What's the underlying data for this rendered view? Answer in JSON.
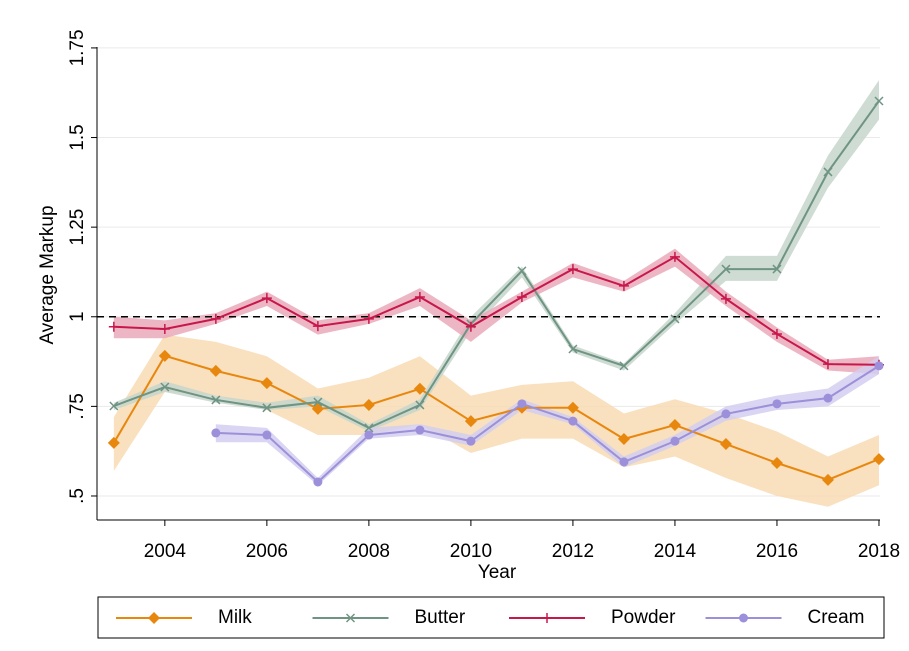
{
  "chart_data": {
    "type": "line",
    "x_label": "Year",
    "y_label": "Average Markup",
    "x": [
      2003,
      2004,
      2005,
      2006,
      2007,
      2008,
      2009,
      2010,
      2011,
      2012,
      2013,
      2014,
      2015,
      2016,
      2017,
      2018
    ],
    "xlim": [
      2002.67,
      2018.02
    ],
    "xticks": [
      2004,
      2006,
      2008,
      2010,
      2012,
      2014,
      2016,
      2018
    ],
    "ylim": [
      0.433,
      1.8
    ],
    "yticks": [
      {
        "value": 0.5,
        "label": ".5"
      },
      {
        "value": 0.75,
        "label": ".75"
      },
      1,
      1.25,
      1.5,
      1.75
    ],
    "grid": true,
    "hline": 1,
    "legend": "bottom",
    "series": [
      {
        "name": "Milk",
        "color": "#e8870e",
        "band_color": "#f8dbb3",
        "marker": "diamond",
        "values": [
          0.648,
          0.891,
          0.849,
          0.815,
          0.743,
          0.754,
          0.799,
          0.709,
          0.746,
          0.746,
          0.659,
          0.698,
          0.645,
          0.592,
          0.545,
          0.603
        ],
        "upper": [
          0.72,
          0.95,
          0.93,
          0.89,
          0.8,
          0.83,
          0.89,
          0.78,
          0.81,
          0.82,
          0.73,
          0.77,
          0.73,
          0.68,
          0.61,
          0.67
        ],
        "lower": [
          0.57,
          0.79,
          0.78,
          0.74,
          0.67,
          0.67,
          0.7,
          0.62,
          0.66,
          0.66,
          0.58,
          0.61,
          0.55,
          0.5,
          0.47,
          0.53
        ]
      },
      {
        "name": "Butter",
        "color": "#6f9483",
        "band_color": "#c6d6cd",
        "marker": "x",
        "values": [
          0.751,
          0.804,
          0.768,
          0.746,
          0.762,
          0.69,
          0.754,
          0.98,
          1.128,
          0.91,
          0.863,
          0.994,
          1.133,
          1.133,
          1.404,
          1.602
        ],
        "upper": [
          0.76,
          0.82,
          0.78,
          0.76,
          0.78,
          0.7,
          0.77,
          1.0,
          1.14,
          0.92,
          0.87,
          1.01,
          1.17,
          1.17,
          1.45,
          1.66
        ],
        "lower": [
          0.74,
          0.79,
          0.76,
          0.74,
          0.75,
          0.68,
          0.74,
          0.96,
          1.11,
          0.9,
          0.85,
          0.98,
          1.1,
          1.1,
          1.36,
          1.55
        ]
      },
      {
        "name": "Powder",
        "color": "#c8174a",
        "band_color": "#eaa9ba",
        "marker": "plus",
        "values": [
          0.972,
          0.966,
          0.994,
          1.052,
          0.974,
          0.994,
          1.055,
          0.972,
          1.055,
          1.133,
          1.086,
          1.167,
          1.05,
          0.952,
          0.868,
          0.866
        ],
        "upper": [
          1.0,
          0.99,
          1.01,
          1.07,
          0.99,
          1.01,
          1.08,
          0.99,
          1.07,
          1.15,
          1.1,
          1.19,
          1.07,
          0.97,
          0.88,
          0.89
        ],
        "lower": [
          0.94,
          0.94,
          0.98,
          1.03,
          0.95,
          0.98,
          1.03,
          0.93,
          1.04,
          1.11,
          1.07,
          1.14,
          1.03,
          0.93,
          0.85,
          0.84
        ]
      },
      {
        "name": "Cream",
        "color": "#9b90d9",
        "band_color": "#d2cef0",
        "marker": "circle",
        "values": [
          null,
          null,
          0.676,
          0.67,
          0.539,
          0.67,
          0.684,
          0.653,
          0.757,
          0.709,
          0.595,
          0.653,
          0.729,
          0.757,
          0.773,
          0.863
        ],
        "upper": [
          null,
          null,
          0.7,
          0.69,
          0.55,
          0.69,
          0.7,
          0.67,
          0.77,
          0.72,
          0.61,
          0.67,
          0.75,
          0.78,
          0.8,
          0.89
        ],
        "lower": [
          null,
          null,
          0.65,
          0.65,
          0.53,
          0.66,
          0.67,
          0.64,
          0.74,
          0.7,
          0.58,
          0.64,
          0.71,
          0.74,
          0.75,
          0.84
        ]
      }
    ]
  }
}
